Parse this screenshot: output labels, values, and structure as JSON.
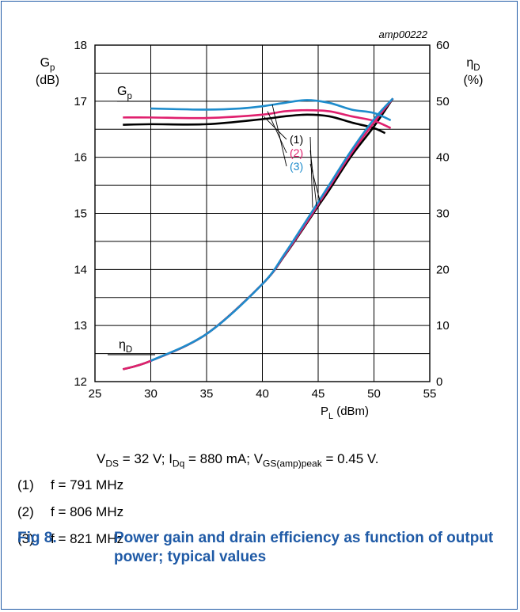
{
  "chart_data": {
    "type": "line",
    "ref_code": "amp00222",
    "x_axis": {
      "label": "P",
      "label_sub": "L",
      "label_unit": " (dBm)",
      "range": [
        25,
        55
      ],
      "ticks": [
        "25",
        "30",
        "35",
        "40",
        "45",
        "50",
        "55"
      ]
    },
    "y_left": {
      "label": "G",
      "label_sub": "p",
      "label_unit": "(dB)",
      "range": [
        12,
        18
      ],
      "ticks": [
        "12",
        "13",
        "14",
        "15",
        "16",
        "17",
        "18"
      ]
    },
    "y_right": {
      "label": "η",
      "label_sub": "D",
      "label_unit": "(%)",
      "range": [
        0,
        60
      ],
      "ticks": [
        "0",
        "10",
        "20",
        "30",
        "40",
        "50",
        "60"
      ]
    },
    "grid": true,
    "curve_labels": {
      "gain": "G",
      "gain_sub": "p",
      "eff": "η",
      "eff_sub": "D"
    },
    "series": [
      {
        "name": "(1)",
        "color": "#000000",
        "gain_x": [
          27.5,
          30,
          35,
          40,
          42,
          44,
          46,
          48,
          50,
          51
        ],
        "gain_y": [
          16.58,
          16.59,
          16.59,
          16.68,
          16.73,
          16.76,
          16.73,
          16.62,
          16.52,
          16.43
        ],
        "eff_x": [
          27.5,
          30,
          35,
          40,
          42,
          44,
          45,
          46,
          48,
          50,
          51.7
        ],
        "eff_y": [
          2.2,
          3.7,
          8.5,
          17.4,
          22.5,
          28.3,
          31.3,
          34.2,
          40.3,
          45.5,
          50.5
        ]
      },
      {
        "name": "(2)",
        "color": "#e0206e",
        "gain_x": [
          27.5,
          30,
          35,
          40,
          42,
          44,
          46,
          48,
          50,
          51.5
        ],
        "gain_y": [
          16.71,
          16.71,
          16.7,
          16.76,
          16.82,
          16.84,
          16.82,
          16.73,
          16.65,
          16.52
        ],
        "eff_x": [
          27.5,
          30,
          35,
          40,
          42,
          44,
          45,
          46,
          48,
          50,
          51.7
        ],
        "eff_y": [
          2.2,
          3.7,
          8.5,
          17.4,
          22.6,
          28.5,
          31.6,
          34.7,
          40.8,
          46.2,
          50.5
        ]
      },
      {
        "name": "(3)",
        "color": "#1e8ccc",
        "gain_x": [
          30,
          32,
          35,
          38,
          40,
          42,
          44,
          46,
          48,
          50,
          51.5
        ],
        "gain_y": [
          16.87,
          16.86,
          16.85,
          16.87,
          16.91,
          16.97,
          17.02,
          16.97,
          16.85,
          16.79,
          16.66
        ],
        "eff_x": [
          30,
          35,
          40,
          42,
          44,
          45,
          46,
          48,
          50,
          51.7
        ],
        "eff_y": [
          3.7,
          8.5,
          17.4,
          22.8,
          28.9,
          32.0,
          35.1,
          41.3,
          46.8,
          50.5
        ]
      }
    ]
  },
  "conditions": {
    "vds_label": "V",
    "vds_sub": "DS",
    "vds_value": " = 32 V; ",
    "idq_label": "I",
    "idq_sub": "Dq",
    "idq_value": " = 880 mA; ",
    "vgs_label": "V",
    "vgs_sub": "GS(amp)peak",
    "vgs_value": " = 0.45 V."
  },
  "notes": [
    {
      "num": "(1)",
      "text": "f = 791 MHz"
    },
    {
      "num": "(2)",
      "text": "f = 806 MHz"
    },
    {
      "num": "(3)",
      "text": "f = 821 MHz"
    }
  ],
  "caption": {
    "fig": "Fig 8.",
    "text": "Power gain and drain efficiency as function of output power; typical values",
    "color": "#1f5aa6"
  }
}
